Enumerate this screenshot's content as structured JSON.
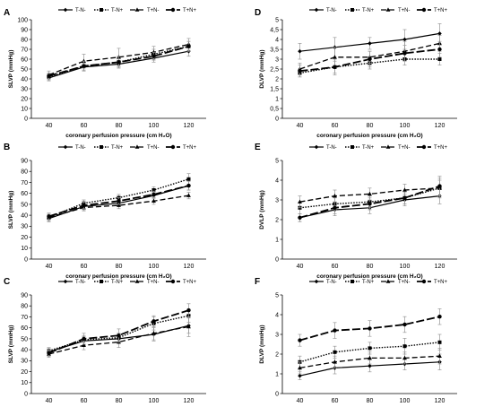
{
  "figure": {
    "background": "#ffffff"
  },
  "chart_data": [
    {
      "panel": "A",
      "type": "line",
      "ylabel": "SLVP (mmHg)",
      "xlabel": "coronary perfusion pressure (cm H₂O)",
      "x": [
        40,
        60,
        80,
        100,
        120
      ],
      "ylim": [
        0,
        100
      ],
      "yticks": [
        0,
        10,
        20,
        30,
        40,
        50,
        60,
        70,
        80,
        90,
        100
      ],
      "series": [
        {
          "name": "T-N-",
          "values": [
            41,
            52,
            55,
            61,
            68
          ],
          "errors": [
            3,
            4,
            4,
            4,
            5
          ]
        },
        {
          "name": "T-N+",
          "values": [
            42,
            53,
            57,
            65,
            73
          ],
          "errors": [
            3,
            4,
            5,
            5,
            5
          ]
        },
        {
          "name": "T+N-",
          "values": [
            44,
            58,
            62,
            67,
            75
          ],
          "errors": [
            4,
            7,
            9,
            6,
            6
          ]
        },
        {
          "name": "T+N+",
          "values": [
            43,
            53,
            57,
            63,
            73
          ],
          "errors": [
            3,
            5,
            6,
            4,
            5
          ]
        }
      ]
    },
    {
      "panel": "B",
      "type": "line",
      "ylabel": "SLVP (mmHg)",
      "xlabel": "coronary perfusion pressure (cm H₂O)",
      "x": [
        40,
        60,
        80,
        100,
        120
      ],
      "ylim": [
        0,
        90
      ],
      "yticks": [
        0,
        10,
        20,
        30,
        40,
        50,
        60,
        70,
        80,
        90
      ],
      "series": [
        {
          "name": "T-N-",
          "values": [
            37,
            48,
            51,
            58,
            67
          ],
          "errors": [
            3,
            3,
            3,
            3,
            4
          ]
        },
        {
          "name": "T-N+",
          "values": [
            38,
            51,
            56,
            63,
            73
          ],
          "errors": [
            3,
            3,
            3,
            3,
            5
          ]
        },
        {
          "name": "T+N-",
          "values": [
            38,
            47,
            49,
            53,
            58
          ],
          "errors": [
            3,
            3,
            3,
            3,
            3
          ]
        },
        {
          "name": "T+N+",
          "values": [
            39,
            49,
            53,
            59,
            67
          ],
          "errors": [
            3,
            3,
            3,
            3,
            4
          ]
        }
      ]
    },
    {
      "panel": "C",
      "type": "line",
      "ylabel": "SLVP (mmHg)",
      "xlabel": "coronary perfusion pressure (cmH₂O)",
      "x": [
        40,
        60,
        80,
        100,
        120
      ],
      "ylim": [
        0,
        90
      ],
      "yticks": [
        0,
        10,
        20,
        30,
        40,
        50,
        60,
        70,
        80,
        90
      ],
      "series": [
        {
          "name": "T-N-",
          "values": [
            38,
            48,
            50,
            54,
            62
          ],
          "errors": [
            3,
            4,
            4,
            6,
            7
          ]
        },
        {
          "name": "T-N+",
          "values": [
            39,
            49,
            51,
            64,
            71
          ],
          "errors": [
            3,
            4,
            4,
            6,
            6
          ]
        },
        {
          "name": "T+N-",
          "values": [
            36,
            44,
            47,
            55,
            61
          ],
          "errors": [
            3,
            4,
            5,
            6,
            9
          ]
        },
        {
          "name": "T+N+",
          "values": [
            37,
            50,
            53,
            66,
            76
          ],
          "errors": [
            3,
            5,
            6,
            5,
            6
          ]
        }
      ]
    },
    {
      "panel": "D",
      "type": "line",
      "ylabel": "DLVP (mmHg)",
      "xlabel": "coronary perfusion pressure (cm H₂O)",
      "x": [
        40,
        60,
        80,
        100,
        120
      ],
      "ylim": [
        0,
        5
      ],
      "yticks": [
        0,
        0.5,
        1,
        1.5,
        2,
        2.5,
        3,
        3.5,
        4,
        4.5,
        5
      ],
      "ytick_labels": [
        "0",
        "0,5",
        "1",
        "1,5",
        "2",
        "2,5",
        "3",
        "3,5",
        "4",
        "4,5",
        "5"
      ],
      "series": [
        {
          "name": "T-N-",
          "values": [
            3.4,
            3.6,
            3.8,
            4.0,
            4.3
          ],
          "errors": [
            0.4,
            0.5,
            0.3,
            0.5,
            0.5
          ]
        },
        {
          "name": "T-N+",
          "values": [
            2.3,
            2.6,
            2.8,
            3.0,
            3.0
          ],
          "errors": [
            0.2,
            0.3,
            0.3,
            0.3,
            0.3
          ]
        },
        {
          "name": "T+N-",
          "values": [
            2.5,
            3.1,
            3.1,
            3.4,
            3.8
          ],
          "errors": [
            0.3,
            0.5,
            0.3,
            0.5,
            0.4
          ]
        },
        {
          "name": "T+N+",
          "values": [
            2.4,
            2.6,
            3.0,
            3.3,
            3.5
          ],
          "errors": [
            0.3,
            0.4,
            0.4,
            0.4,
            0.4
          ]
        }
      ]
    },
    {
      "panel": "E",
      "type": "line",
      "ylabel": "DVLP (mmHg)",
      "xlabel": "coronary perfusion pressure (cm H₂O)",
      "x": [
        40,
        60,
        80,
        100,
        120
      ],
      "ylim": [
        0,
        5
      ],
      "yticks": [
        0,
        1,
        2,
        3,
        4,
        5
      ],
      "series": [
        {
          "name": "T-N-",
          "values": [
            2.1,
            2.5,
            2.6,
            3.0,
            3.2
          ],
          "errors": [
            0.2,
            0.3,
            0.3,
            0.3,
            0.4
          ]
        },
        {
          "name": "T-N+",
          "values": [
            2.6,
            2.8,
            2.9,
            3.1,
            3.6
          ],
          "errors": [
            0.3,
            0.3,
            0.3,
            0.3,
            0.4
          ]
        },
        {
          "name": "T+N-",
          "values": [
            2.9,
            3.2,
            3.3,
            3.5,
            3.6
          ],
          "errors": [
            0.3,
            0.3,
            0.3,
            0.3,
            0.5
          ]
        },
        {
          "name": "T+N+",
          "values": [
            2.1,
            2.6,
            2.8,
            3.1,
            3.7
          ],
          "errors": [
            0.2,
            0.3,
            0.3,
            0.3,
            0.5
          ]
        }
      ]
    },
    {
      "panel": "F",
      "type": "line",
      "ylabel": "DLVP (mmHg)",
      "xlabel": "coronary perfusion pressure (cmH₂O)",
      "x": [
        40,
        60,
        80,
        100,
        120
      ],
      "ylim": [
        0,
        5
      ],
      "yticks": [
        0,
        1,
        2,
        3,
        4,
        5
      ],
      "series": [
        {
          "name": "T-N-",
          "values": [
            0.9,
            1.3,
            1.4,
            1.5,
            1.6
          ],
          "errors": [
            0.2,
            0.3,
            0.3,
            0.3,
            0.4
          ]
        },
        {
          "name": "T-N+",
          "values": [
            1.6,
            2.1,
            2.3,
            2.4,
            2.6
          ],
          "errors": [
            0.3,
            0.3,
            0.3,
            0.4,
            0.4
          ]
        },
        {
          "name": "T+N-",
          "values": [
            1.3,
            1.6,
            1.8,
            1.8,
            1.9
          ],
          "errors": [
            0.3,
            0.3,
            0.3,
            0.3,
            0.4
          ]
        },
        {
          "name": "T+N+",
          "values": [
            2.7,
            3.2,
            3.3,
            3.5,
            3.9
          ],
          "errors": [
            0.3,
            0.4,
            0.4,
            0.4,
            0.4
          ]
        }
      ]
    }
  ],
  "style": {
    "line_color": "#000000",
    "error_color": "#999999",
    "dash_patterns": {
      "T-N-": "",
      "T-N+": "1.5,1.5",
      "T+N-": "6,3",
      "T+N+": "9,3"
    },
    "stroke_widths": {
      "T-N-": 1.2,
      "T-N+": 1.4,
      "T+N-": 1.3,
      "T+N+": 1.8
    },
    "markers": {
      "T-N-": "diamond",
      "T-N+": "square",
      "T+N-": "triangle",
      "T+N+": "circle"
    }
  }
}
